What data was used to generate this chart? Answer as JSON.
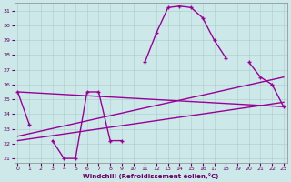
{
  "xlabel": "Windchill (Refroidissement éolien,°C)",
  "bg_color": "#cce8e8",
  "line_color": "#990099",
  "grid_color": "#aacccc",
  "ylim": [
    20.7,
    31.5
  ],
  "xlim": [
    -0.3,
    23.3
  ],
  "yticks": [
    21,
    22,
    23,
    24,
    25,
    26,
    27,
    28,
    29,
    30,
    31
  ],
  "xticks": [
    0,
    1,
    2,
    3,
    4,
    5,
    6,
    7,
    8,
    9,
    10,
    11,
    12,
    13,
    14,
    15,
    16,
    17,
    18,
    19,
    20,
    21,
    22,
    23
  ],
  "curve_main_segments": [
    {
      "x": [
        0,
        1
      ],
      "y": [
        25.5,
        23.3
      ]
    },
    {
      "x": [
        3,
        4,
        5,
        6,
        7,
        8,
        9
      ],
      "y": [
        22.2,
        21.0,
        21.0,
        25.5,
        25.5,
        22.2,
        22.2
      ]
    },
    {
      "x": [
        11,
        12,
        13,
        14,
        15,
        16,
        17,
        18
      ],
      "y": [
        27.5,
        29.5,
        31.2,
        31.3,
        31.2,
        30.5,
        29.0,
        27.8
      ]
    },
    {
      "x": [
        20,
        21,
        22,
        23
      ],
      "y": [
        27.5,
        26.5,
        26.0,
        24.5
      ]
    }
  ],
  "line1": {
    "x": [
      0,
      23
    ],
    "y": [
      25.5,
      24.5
    ]
  },
  "line2": {
    "x": [
      0,
      23
    ],
    "y": [
      22.2,
      24.8
    ]
  },
  "line3": {
    "x": [
      0,
      23
    ],
    "y": [
      22.5,
      26.5
    ]
  }
}
